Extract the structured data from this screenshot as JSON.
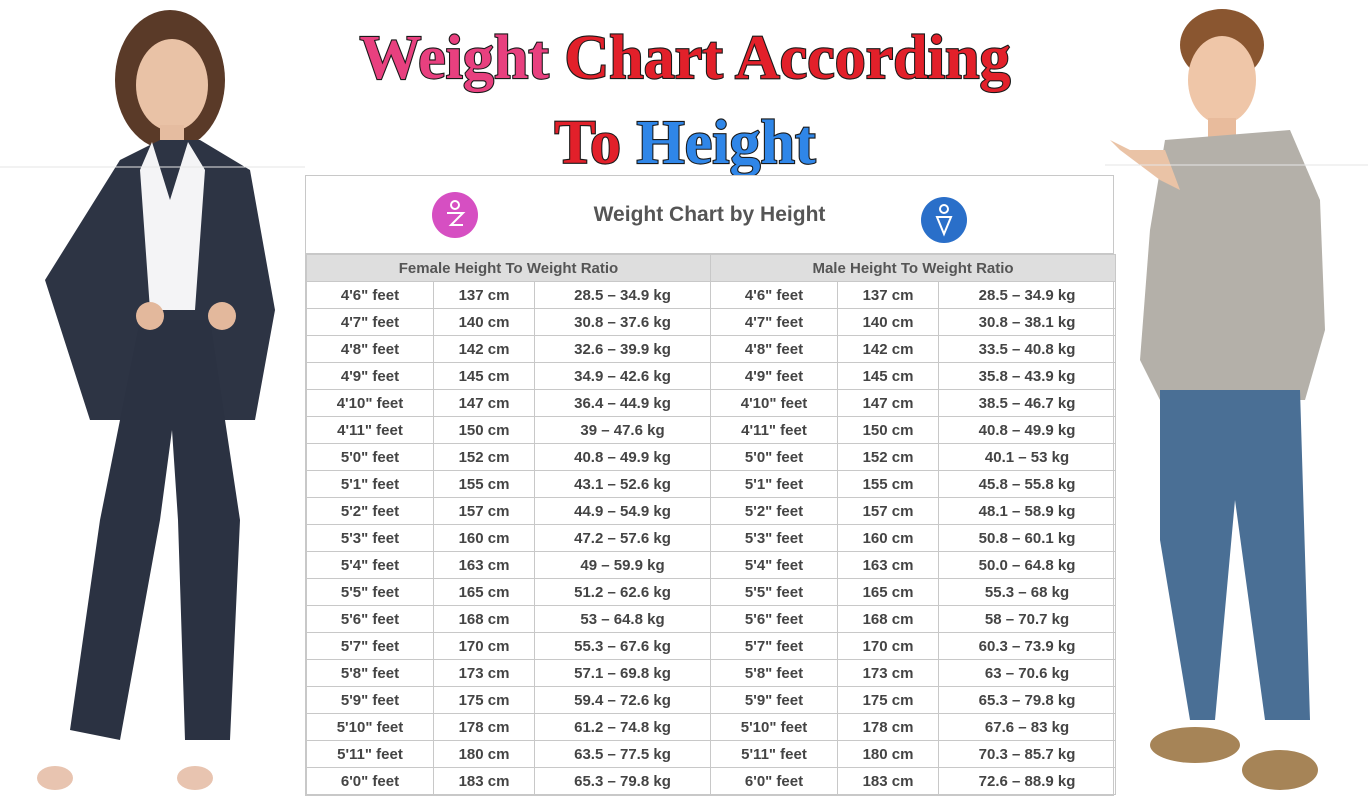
{
  "header": {
    "title_lines": [
      [
        "Weight",
        "Chart According"
      ],
      [
        "To",
        "Height"
      ]
    ]
  },
  "table": {
    "title": "Weight Chart by Height",
    "groups": [
      "Female Height To Weight Ratio",
      "Male Height To Weight Ratio"
    ],
    "rows": [
      [
        "4'6\" feet",
        "137 cm",
        "28.5 – 34.9 kg",
        "4'6\" feet",
        "137 cm",
        "28.5 – 34.9 kg"
      ],
      [
        "4'7\" feet",
        "140 cm",
        "30.8 – 37.6 kg",
        "4'7\" feet",
        "140 cm",
        "30.8 – 38.1 kg"
      ],
      [
        "4'8\" feet",
        "142 cm",
        "32.6 – 39.9 kg",
        "4'8\" feet",
        "142 cm",
        "33.5 – 40.8 kg"
      ],
      [
        "4'9\" feet",
        "145 cm",
        "34.9 – 42.6 kg",
        "4'9\" feet",
        "145 cm",
        "35.8 – 43.9 kg"
      ],
      [
        "4'10\" feet",
        "147 cm",
        "36.4 – 44.9 kg",
        "4'10\" feet",
        "147 cm",
        "38.5 – 46.7 kg"
      ],
      [
        "4'11\" feet",
        "150 cm",
        "39 – 47.6 kg",
        "4'11\" feet",
        "150 cm",
        "40.8 – 49.9 kg"
      ],
      [
        "5'0\" feet",
        "152 cm",
        "40.8 – 49.9 kg",
        "5'0\" feet",
        "152 cm",
        "40.1 – 53 kg"
      ],
      [
        "5'1\" feet",
        "155 cm",
        "43.1 – 52.6 kg",
        "5'1\" feet",
        "155 cm",
        "45.8 – 55.8 kg"
      ],
      [
        "5'2\" feet",
        "157 cm",
        "44.9 – 54.9 kg",
        "5'2\" feet",
        "157 cm",
        "48.1 – 58.9 kg"
      ],
      [
        "5'3\" feet",
        "160 cm",
        "47.2 – 57.6 kg",
        "5'3\" feet",
        "160 cm",
        "50.8 – 60.1 kg"
      ],
      [
        "5'4\" feet",
        "163 cm",
        "49 – 59.9 kg",
        "5'4\" feet",
        "163 cm",
        "50.0 – 64.8 kg"
      ],
      [
        "5'5\" feet",
        "165 cm",
        "51.2 – 62.6 kg",
        "5'5\" feet",
        "165 cm",
        "55.3 – 68 kg"
      ],
      [
        "5'6\" feet",
        "168 cm",
        "53 – 64.8 kg",
        "5'6\" feet",
        "168 cm",
        "58 – 70.7 kg"
      ],
      [
        "5'7\" feet",
        "170 cm",
        "55.3 – 67.6 kg",
        "5'7\" feet",
        "170 cm",
        "60.3 – 73.9 kg"
      ],
      [
        "5'8\" feet",
        "173 cm",
        "57.1 – 69.8 kg",
        "5'8\" feet",
        "173 cm",
        "63 – 70.6 kg"
      ],
      [
        "5'9\" feet",
        "175 cm",
        "59.4 – 72.6 kg",
        "5'9\" feet",
        "175 cm",
        "65.3 – 79.8 kg"
      ],
      [
        "5'10\" feet",
        "178 cm",
        "61.2 – 74.8 kg",
        "5'10\" feet",
        "178 cm",
        "67.6 – 83 kg"
      ],
      [
        "5'11\" feet",
        "180 cm",
        "63.5 – 77.5 kg",
        "5'11\" feet",
        "180 cm",
        "70.3 – 85.7 kg"
      ],
      [
        "6'0\" feet",
        "183 cm",
        "65.3 – 79.8 kg",
        "6'0\" feet",
        "183 cm",
        "72.6 – 88.9 kg"
      ]
    ]
  }
}
